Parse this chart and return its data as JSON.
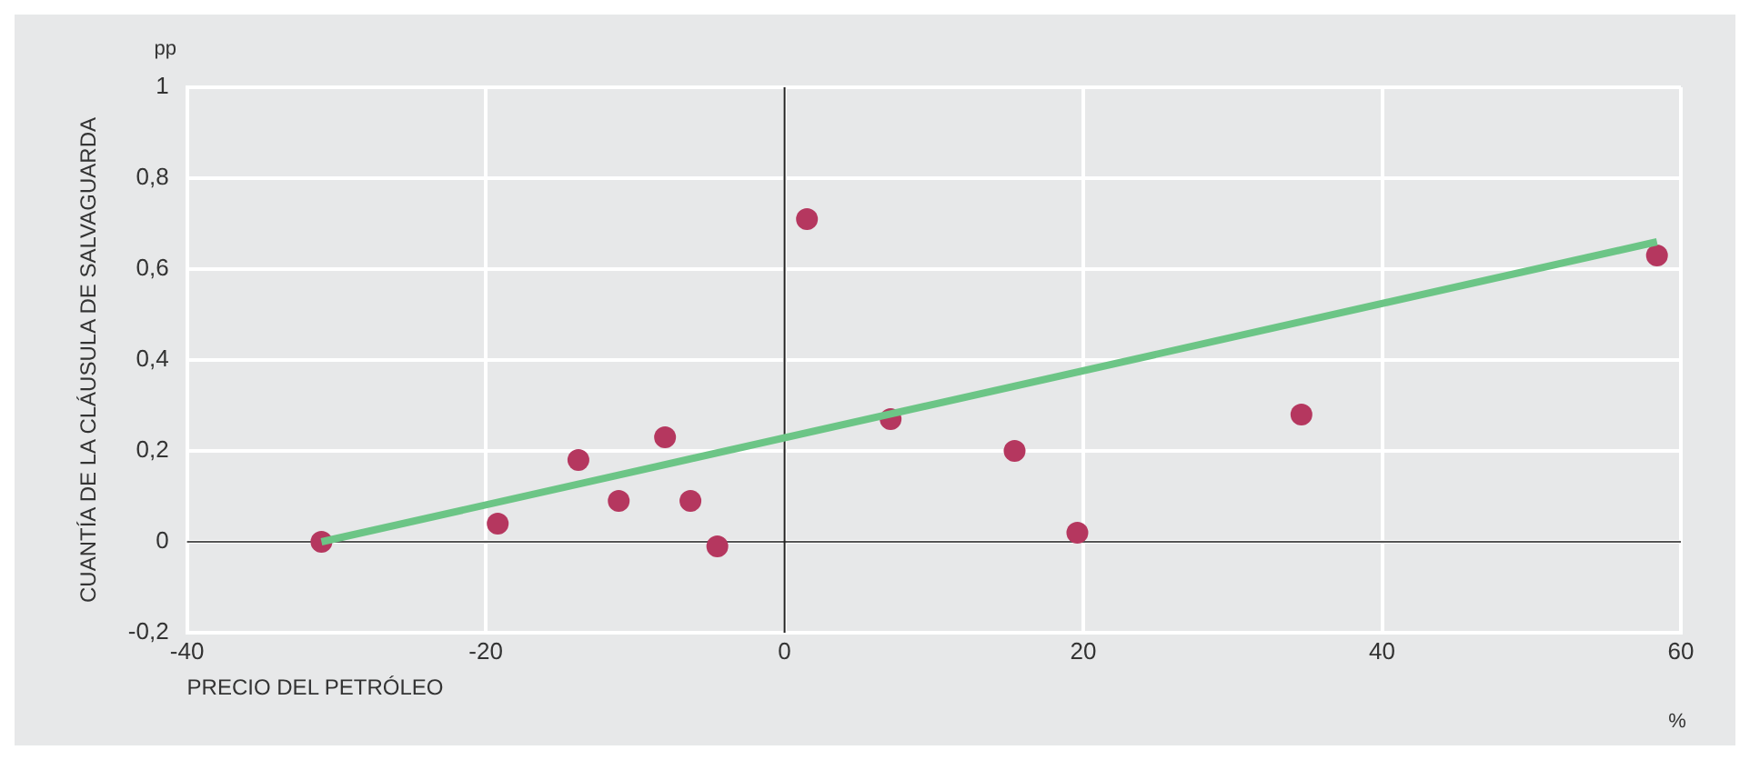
{
  "chart_data": {
    "type": "scatter",
    "xlabel": "PRECIO DEL PETRÓLEO",
    "ylabel": "CUANTÍA DE LA CLÁUSULA DE SALVAGUARDA",
    "annotations": [
      "pp",
      "%"
    ],
    "series": [
      {
        "type": "scatter",
        "color": "#b5375f",
        "marker": "circle",
        "x": [
          -31,
          -19.2,
          -13.8,
          -11.1,
          -8,
          -6.3,
          -4.5,
          1.5,
          7.1,
          15.4,
          19.6,
          34.6,
          58.4
        ],
        "values": [
          0,
          0.04,
          0.18,
          0.09,
          0.23,
          0.09,
          -0.01,
          0.71,
          0.27,
          0.2,
          0.02,
          0.28,
          0.63
        ]
      },
      {
        "type": "line",
        "color": "#6cc586",
        "marker": "none",
        "x": [
          -31,
          58.4
        ],
        "values": [
          0,
          0.66
        ]
      }
    ],
    "xlim": [
      -40,
      60
    ],
    "xticks": [
      -40,
      -20,
      0,
      20,
      40,
      60
    ],
    "ylim": [
      -0.2,
      1
    ],
    "yticks": [
      {
        "value": -0.2,
        "label": "-0,2"
      },
      0,
      {
        "value": 0.2,
        "label": "0,2"
      },
      {
        "value": 0.4,
        "label": "0,4"
      },
      {
        "value": 0.6,
        "label": "0,6"
      },
      {
        "value": 0.8,
        "label": "0,8"
      },
      1
    ],
    "ref_lines": [
      {
        "axis": "y",
        "value": 0,
        "color": "#555555"
      },
      {
        "axis": "x",
        "value": 0,
        "color": "#222222"
      }
    ],
    "grid": true,
    "legend": false
  }
}
